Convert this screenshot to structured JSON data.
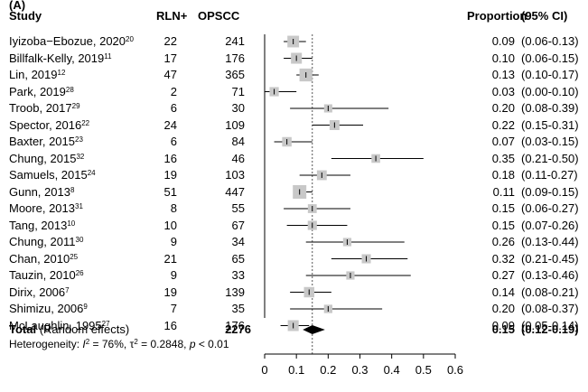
{
  "panel_label": "(A)",
  "header": {
    "study": "Study",
    "events": "RLN+",
    "total": "OPSCC",
    "proportion": "Proportion",
    "ci": "(95% CI)"
  },
  "chart_data": {
    "type": "forest",
    "x_ticks": [
      0,
      0.1,
      0.2,
      0.3,
      0.4,
      0.5,
      0.6
    ],
    "xlim": [
      0,
      0.6
    ],
    "reference_line": 0.15,
    "studies": [
      {
        "name": "Iyizoba−Ebozue, 2020",
        "ref": "20",
        "events": "22",
        "total": "241",
        "proportion": 0.09,
        "lower": 0.06,
        "upper": 0.13,
        "prop_text": "0.09",
        "ci_text": "(0.06-0.13)"
      },
      {
        "name": "Billfalk-Kelly, 2019",
        "ref": "11",
        "events": "17",
        "total": "176",
        "proportion": 0.1,
        "lower": 0.06,
        "upper": 0.15,
        "prop_text": "0.10",
        "ci_text": "(0.06-0.15)"
      },
      {
        "name": "Lin, 2019",
        "ref": "12",
        "events": "47",
        "total": "365",
        "proportion": 0.13,
        "lower": 0.1,
        "upper": 0.17,
        "prop_text": "0.13",
        "ci_text": "(0.10-0.17)"
      },
      {
        "name": "Park, 2019",
        "ref": "28",
        "events": "2",
        "total": "71",
        "proportion": 0.03,
        "lower": 0.0,
        "upper": 0.1,
        "prop_text": "0.03",
        "ci_text": "(0.00-0.10)"
      },
      {
        "name": "Troob, 2017",
        "ref": "29",
        "events": "6",
        "total": "30",
        "proportion": 0.2,
        "lower": 0.08,
        "upper": 0.39,
        "prop_text": "0.20",
        "ci_text": "(0.08-0.39)"
      },
      {
        "name": "Spector, 2016",
        "ref": "22",
        "events": "24",
        "total": "109",
        "proportion": 0.22,
        "lower": 0.15,
        "upper": 0.31,
        "prop_text": "0.22",
        "ci_text": "(0.15-0.31)"
      },
      {
        "name": "Baxter, 2015",
        "ref": "23",
        "events": "6",
        "total": "84",
        "proportion": 0.07,
        "lower": 0.03,
        "upper": 0.15,
        "prop_text": "0.07",
        "ci_text": "(0.03-0.15)"
      },
      {
        "name": "Chung, 2015",
        "ref": "32",
        "events": "16",
        "total": "46",
        "proportion": 0.35,
        "lower": 0.21,
        "upper": 0.5,
        "prop_text": "0.35",
        "ci_text": "(0.21-0.50)"
      },
      {
        "name": "Samuels, 2015",
        "ref": "24",
        "events": "19",
        "total": "103",
        "proportion": 0.18,
        "lower": 0.11,
        "upper": 0.27,
        "prop_text": "0.18",
        "ci_text": "(0.11-0.27)"
      },
      {
        "name": "Gunn, 2013",
        "ref": "8",
        "events": "51",
        "total": "447",
        "proportion": 0.11,
        "lower": 0.09,
        "upper": 0.15,
        "prop_text": "0.11",
        "ci_text": "(0.09-0.15)"
      },
      {
        "name": "Moore, 2013",
        "ref": "31",
        "events": "8",
        "total": "55",
        "proportion": 0.15,
        "lower": 0.06,
        "upper": 0.27,
        "prop_text": "0.15",
        "ci_text": "(0.06-0.27)"
      },
      {
        "name": "Tang, 2013",
        "ref": "10",
        "events": "10",
        "total": "67",
        "proportion": 0.15,
        "lower": 0.07,
        "upper": 0.26,
        "prop_text": "0.15",
        "ci_text": "(0.07-0.26)"
      },
      {
        "name": "Chung, 2011",
        "ref": "30",
        "events": "9",
        "total": "34",
        "proportion": 0.26,
        "lower": 0.13,
        "upper": 0.44,
        "prop_text": "0.26",
        "ci_text": "(0.13-0.44)"
      },
      {
        "name": "Chan, 2010",
        "ref": "25",
        "events": "21",
        "total": "65",
        "proportion": 0.32,
        "lower": 0.21,
        "upper": 0.45,
        "prop_text": "0.32",
        "ci_text": "(0.21-0.45)"
      },
      {
        "name": "Tauzin, 2010",
        "ref": "26",
        "events": "9",
        "total": "33",
        "proportion": 0.27,
        "lower": 0.13,
        "upper": 0.46,
        "prop_text": "0.27",
        "ci_text": "(0.13-0.46)"
      },
      {
        "name": "Dirix, 2006",
        "ref": "7",
        "events": "19",
        "total": "139",
        "proportion": 0.14,
        "lower": 0.08,
        "upper": 0.21,
        "prop_text": "0.14",
        "ci_text": "(0.08-0.21)"
      },
      {
        "name": "Shimizu, 2006",
        "ref": "9",
        "events": "7",
        "total": "35",
        "proportion": 0.2,
        "lower": 0.08,
        "upper": 0.37,
        "prop_text": "0.20",
        "ci_text": "(0.08-0.37)"
      },
      {
        "name": "McLaughlin, 1995",
        "ref": "27",
        "events": "16",
        "total": "176",
        "proportion": 0.09,
        "lower": 0.05,
        "upper": 0.14,
        "prop_text": "0.09",
        "ci_text": "(0.05-0.14)"
      }
    ],
    "pooled": {
      "label_bold": "Total",
      "label_rest": " (Random effects)",
      "total": "2276",
      "proportion": 0.15,
      "lower": 0.12,
      "upper": 0.19,
      "prop_text": "0.15",
      "ci_text": "(0.12-0.19)"
    },
    "heterogeneity": {
      "prefix": "Heterogeneity: ",
      "i2_label": "I",
      "i2_value": " = 76%, ",
      "tau_label": "τ",
      "tau_value": " = 0.2848, ",
      "p_label": "p",
      "p_value": " < 0.01"
    }
  },
  "colors": {
    "box": "#c8c8c8",
    "line": "#000000",
    "ref_line": "#555555"
  }
}
